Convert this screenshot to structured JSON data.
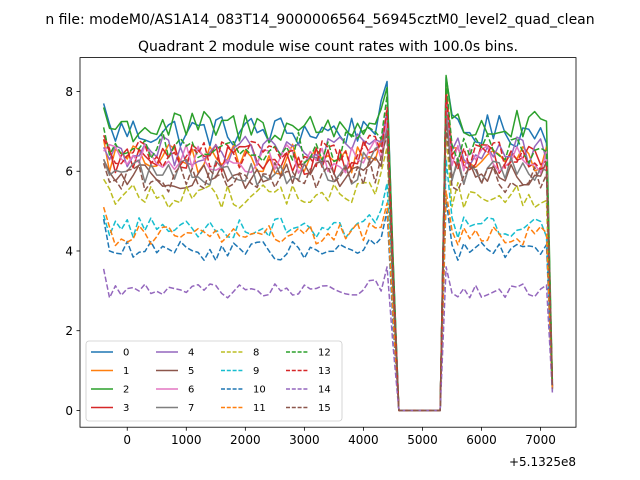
{
  "chart_data": {
    "type": "line",
    "suptitle": "n file: modeM0/AS1A14_083T14_9000006564_56945cztM0_level2_quad_clean",
    "title": "Quadrant 2 module wise count rates with 100.0s bins.",
    "xlabel": "",
    "ylabel": "",
    "offset_text": "+5.1325e8",
    "xlim": [
      -800,
      7600
    ],
    "ylim": [
      -0.42,
      8.85
    ],
    "xticks": [
      0,
      1000,
      2000,
      3000,
      4000,
      5000,
      6000,
      7000
    ],
    "xtick_labels": [
      "0",
      "1000",
      "2000",
      "3000",
      "4000",
      "5000",
      "6000",
      "7000"
    ],
    "yticks": [
      0,
      2,
      4,
      6,
      8
    ],
    "ytick_labels": [
      "0",
      "2",
      "4",
      "6",
      "8"
    ],
    "legend_position": "lower-left",
    "series": [
      {
        "name": "0",
        "color": "#1f77b4",
        "dash": "solid",
        "level": 7.0,
        "start": 7.7,
        "peak_left": 8.25,
        "peak_right": 8.35,
        "end": 0.6
      },
      {
        "name": "1",
        "color": "#ff7f0e",
        "dash": "solid",
        "level": 6.3,
        "start": 6.8,
        "peak_left": 7.2,
        "peak_right": 8.1,
        "end": 0.55
      },
      {
        "name": "2",
        "color": "#2ca02c",
        "dash": "solid",
        "level": 7.1,
        "start": 7.6,
        "peak_left": 8.1,
        "peak_right": 8.4,
        "end": 0.7
      },
      {
        "name": "3",
        "color": "#d62728",
        "dash": "solid",
        "level": 6.3,
        "start": 6.9,
        "peak_left": 7.4,
        "peak_right": 8.0,
        "end": 0.6
      },
      {
        "name": "4",
        "color": "#9467bd",
        "dash": "solid",
        "level": 6.5,
        "start": 6.6,
        "peak_left": 7.5,
        "peak_right": 7.9,
        "end": 0.6
      },
      {
        "name": "5",
        "color": "#8c564b",
        "dash": "solid",
        "level": 5.9,
        "start": 6.3,
        "peak_left": 7.2,
        "peak_right": 7.5,
        "end": 0.55
      },
      {
        "name": "6",
        "color": "#e377c2",
        "dash": "solid",
        "level": 6.3,
        "start": 6.5,
        "peak_left": 7.3,
        "peak_right": 7.7,
        "end": 0.6
      },
      {
        "name": "7",
        "color": "#7f7f7f",
        "dash": "solid",
        "level": 6.0,
        "start": 6.3,
        "peak_left": 7.0,
        "peak_right": 7.5,
        "end": 0.55
      },
      {
        "name": "8",
        "color": "#bcbd22",
        "dash": "dashed",
        "level": 5.4,
        "start": 5.8,
        "peak_left": 6.6,
        "peak_right": 7.0,
        "end": 0.5
      },
      {
        "name": "9",
        "color": "#17becf",
        "dash": "dashed",
        "level": 4.6,
        "start": 4.9,
        "peak_left": 5.7,
        "peak_right": 6.3,
        "end": 0.5
      },
      {
        "name": "10",
        "color": "#1f77b4",
        "dash": "dashed",
        "level": 4.0,
        "start": 4.8,
        "peak_left": 5.0,
        "peak_right": 5.3,
        "end": 0.5
      },
      {
        "name": "11",
        "color": "#ff7f0e",
        "dash": "dashed",
        "level": 4.4,
        "start": 5.1,
        "peak_left": 5.2,
        "peak_right": 5.5,
        "end": 0.5
      },
      {
        "name": "12",
        "color": "#2ca02c",
        "dash": "dashed",
        "level": 6.6,
        "start": 7.1,
        "peak_left": 7.9,
        "peak_right": 8.2,
        "end": 0.7
      },
      {
        "name": "13",
        "color": "#d62728",
        "dash": "dashed",
        "level": 6.4,
        "start": 6.8,
        "peak_left": 7.6,
        "peak_right": 7.9,
        "end": 0.6
      },
      {
        "name": "14",
        "color": "#9467bd",
        "dash": "dashed",
        "level": 3.0,
        "start": 3.55,
        "peak_left": 3.6,
        "peak_right": 3.6,
        "end": 0.45
      },
      {
        "name": "15",
        "color": "#8c564b",
        "dash": "dashed",
        "level": 5.8,
        "start": 6.2,
        "peak_left": 6.9,
        "peak_right": 7.2,
        "end": 0.55
      }
    ]
  }
}
